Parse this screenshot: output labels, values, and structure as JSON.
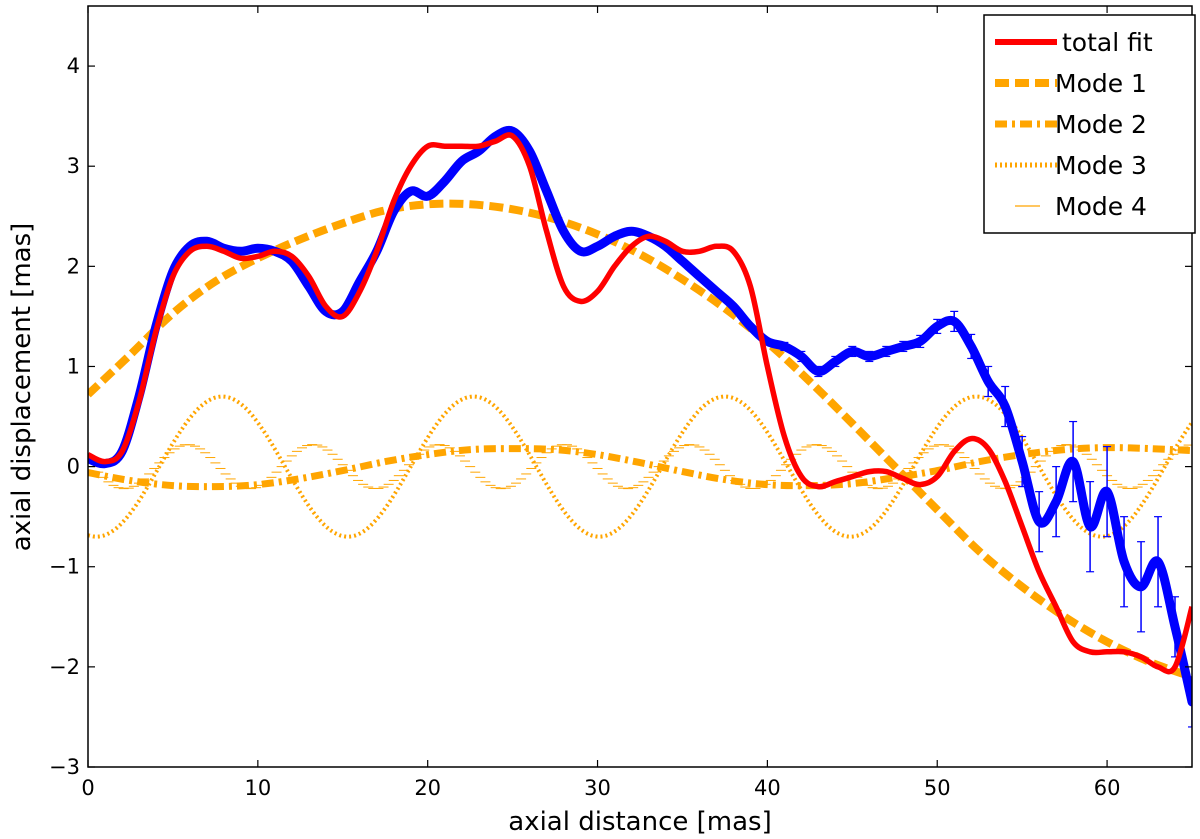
{
  "chart_data": {
    "type": "line",
    "title": "",
    "xlabel": "axial distance [mas]",
    "ylabel": "axial displacement [mas]",
    "xlim": [
      0,
      65
    ],
    "ylim": [
      -3,
      4.6
    ],
    "xticks": [
      0,
      10,
      20,
      30,
      40,
      50,
      60
    ],
    "yticks": [
      -3,
      -2,
      -1,
      0,
      1,
      2,
      3,
      4
    ],
    "xtick_labels": [
      "0",
      "10",
      "20",
      "30",
      "40",
      "50",
      "60"
    ],
    "ytick_labels": [
      "−3",
      "−2",
      "−1",
      "0",
      "1",
      "2",
      "3",
      "4"
    ],
    "grid": false,
    "legend_position": "top-right",
    "legend": [
      "total fit",
      "Mode 1",
      "Mode 2",
      "Mode 3",
      "Mode 4"
    ],
    "colors": {
      "data": "#0000ff",
      "total_fit": "#ff0000",
      "modes": "#ffa500"
    },
    "data_series": {
      "name": "data",
      "x": [
        0,
        1,
        2,
        3,
        4,
        5,
        6,
        7,
        8,
        9,
        10,
        11,
        12,
        13,
        14,
        15,
        16,
        17,
        18,
        19,
        20,
        21,
        22,
        23,
        24,
        25,
        26,
        27,
        28,
        29,
        30,
        31,
        32,
        33,
        34,
        35,
        36,
        37,
        38,
        39,
        40,
        41,
        42,
        43,
        44,
        45,
        46,
        47,
        48,
        49,
        50,
        51,
        52,
        53,
        54,
        55,
        56,
        57,
        58,
        59,
        60,
        61,
        62,
        63,
        64,
        65
      ],
      "y": [
        0.08,
        0.03,
        0.15,
        0.7,
        1.4,
        1.95,
        2.2,
        2.25,
        2.18,
        2.15,
        2.18,
        2.15,
        2.05,
        1.8,
        1.55,
        1.55,
        1.85,
        2.15,
        2.55,
        2.75,
        2.7,
        2.85,
        3.05,
        3.15,
        3.3,
        3.35,
        3.15,
        2.75,
        2.35,
        2.15,
        2.2,
        2.3,
        2.35,
        2.3,
        2.2,
        2.05,
        1.9,
        1.75,
        1.6,
        1.4,
        1.25,
        1.2,
        1.1,
        0.95,
        1.05,
        1.15,
        1.1,
        1.15,
        1.2,
        1.25,
        1.4,
        1.45,
        1.2,
        0.85,
        0.6,
        0.05,
        -0.55,
        -0.35,
        0.05,
        -0.6,
        -0.25,
        -0.95,
        -1.2,
        -0.95,
        -1.6,
        -2.35
      ],
      "yerr": [
        0.02,
        0.02,
        0.02,
        0.02,
        0.02,
        0.02,
        0.02,
        0.02,
        0.02,
        0.02,
        0.02,
        0.02,
        0.02,
        0.02,
        0.02,
        0.02,
        0.02,
        0.02,
        0.02,
        0.02,
        0.02,
        0.02,
        0.02,
        0.02,
        0.02,
        0.02,
        0.02,
        0.02,
        0.02,
        0.02,
        0.02,
        0.02,
        0.02,
        0.02,
        0.02,
        0.02,
        0.02,
        0.02,
        0.02,
        0.02,
        0.02,
        0.04,
        0.05,
        0.05,
        0.05,
        0.05,
        0.05,
        0.05,
        0.05,
        0.06,
        0.07,
        0.1,
        0.12,
        0.15,
        0.2,
        0.25,
        0.3,
        0.35,
        0.4,
        0.45,
        0.45,
        0.45,
        0.45,
        0.45,
        0.3,
        0.25
      ]
    },
    "series": [
      {
        "name": "total fit",
        "x": [
          0,
          1,
          2,
          3,
          4,
          5,
          6,
          7,
          8,
          9,
          10,
          11,
          12,
          13,
          14,
          15,
          16,
          17,
          18,
          19,
          20,
          21,
          22,
          23,
          24,
          25,
          26,
          27,
          28,
          29,
          30,
          31,
          32,
          33,
          34,
          35,
          36,
          37,
          38,
          39,
          40,
          41,
          42,
          43,
          44,
          45,
          46,
          47,
          48,
          49,
          50,
          51,
          52,
          53,
          54,
          55,
          56,
          57,
          58,
          59,
          60,
          61,
          62,
          63,
          64,
          65
        ],
        "y": [
          0.12,
          0.05,
          0.15,
          0.65,
          1.35,
          1.9,
          2.15,
          2.2,
          2.15,
          2.08,
          2.1,
          2.15,
          2.1,
          1.9,
          1.6,
          1.5,
          1.75,
          2.15,
          2.65,
          3.0,
          3.2,
          3.2,
          3.2,
          3.2,
          3.25,
          3.3,
          3.0,
          2.35,
          1.8,
          1.65,
          1.75,
          2.0,
          2.2,
          2.3,
          2.25,
          2.15,
          2.15,
          2.2,
          2.15,
          1.8,
          1.0,
          0.3,
          -0.1,
          -0.2,
          -0.15,
          -0.1,
          -0.05,
          -0.05,
          -0.12,
          -0.18,
          -0.1,
          0.15,
          0.28,
          0.18,
          -0.15,
          -0.6,
          -1.05,
          -1.4,
          -1.75,
          -1.85,
          -1.85,
          -1.85,
          -1.9,
          -2.0,
          -2.0,
          -1.4
        ]
      },
      {
        "name": "Mode 1",
        "x": [
          0,
          2.5,
          5,
          7.5,
          10,
          12.5,
          15,
          17.5,
          20,
          22.5,
          25,
          27.5,
          30,
          32.5,
          35,
          37.5,
          40,
          42.5,
          45,
          47.5,
          50,
          52.5,
          55,
          57.5,
          60,
          62.5,
          65
        ],
        "y": [
          0.72,
          1.12,
          1.53,
          1.85,
          2.08,
          2.27,
          2.43,
          2.56,
          2.62,
          2.62,
          2.57,
          2.47,
          2.32,
          2.12,
          1.87,
          1.58,
          1.24,
          0.85,
          0.43,
          0.0,
          -0.43,
          -0.85,
          -1.2,
          -1.5,
          -1.75,
          -1.95,
          -2.1
        ]
      },
      {
        "name": "Mode 2",
        "x": [
          0,
          2.5,
          5,
          7.5,
          10,
          12.5,
          15,
          17.5,
          20,
          22.5,
          25,
          27.5,
          30,
          32.5,
          35,
          37.5,
          40,
          42.5,
          45,
          47.5,
          50,
          52.5,
          55,
          57.5,
          60,
          62.5,
          65
        ],
        "y": [
          -0.06,
          -0.14,
          -0.19,
          -0.2,
          -0.18,
          -0.12,
          -0.04,
          0.05,
          0.12,
          0.17,
          0.18,
          0.17,
          0.12,
          0.04,
          -0.05,
          -0.13,
          -0.18,
          -0.19,
          -0.17,
          -0.11,
          -0.04,
          0.05,
          0.12,
          0.17,
          0.19,
          0.18,
          0.16
        ]
      },
      {
        "name": "Mode 3",
        "amplitude": 0.7,
        "period": 14.8,
        "phase_x": 7.9,
        "x": [
          0,
          4,
          8,
          12,
          15.3,
          19,
          22.8,
          26.5,
          30,
          34,
          37.5,
          41,
          44.7,
          48.5,
          52.2,
          56,
          59.6,
          63,
          65
        ],
        "y": [
          -0.7,
          0.1,
          0.7,
          0.1,
          -0.7,
          0.05,
          0.7,
          0.1,
          -0.7,
          0.1,
          0.7,
          0.1,
          -0.7,
          0.05,
          0.7,
          0.1,
          -0.7,
          0.1,
          0.45
        ]
      },
      {
        "name": "Mode 4",
        "amplitude": 0.22,
        "period": 7.4,
        "phase_x": 4.0,
        "x": [
          0,
          2,
          4,
          6,
          8,
          10,
          12,
          14,
          16,
          18,
          20,
          22,
          24,
          26,
          28,
          30,
          32,
          34,
          36,
          38,
          40,
          42,
          44,
          46,
          48,
          50,
          52,
          54,
          56,
          58,
          60,
          62,
          64,
          65
        ],
        "y": [
          -0.05,
          -0.2,
          0.22,
          0.0,
          -0.2,
          -0.1,
          0.22,
          0.05,
          -0.22,
          -0.05,
          0.2,
          0.0,
          -0.2,
          0.15,
          0.1,
          -0.22,
          -0.05,
          0.2,
          0.05,
          -0.2,
          -0.05,
          0.22,
          0.05,
          -0.2,
          -0.05,
          0.2,
          0.05,
          -0.22,
          0.0,
          0.2,
          0.1,
          -0.2,
          -0.1,
          0.0
        ]
      }
    ]
  }
}
